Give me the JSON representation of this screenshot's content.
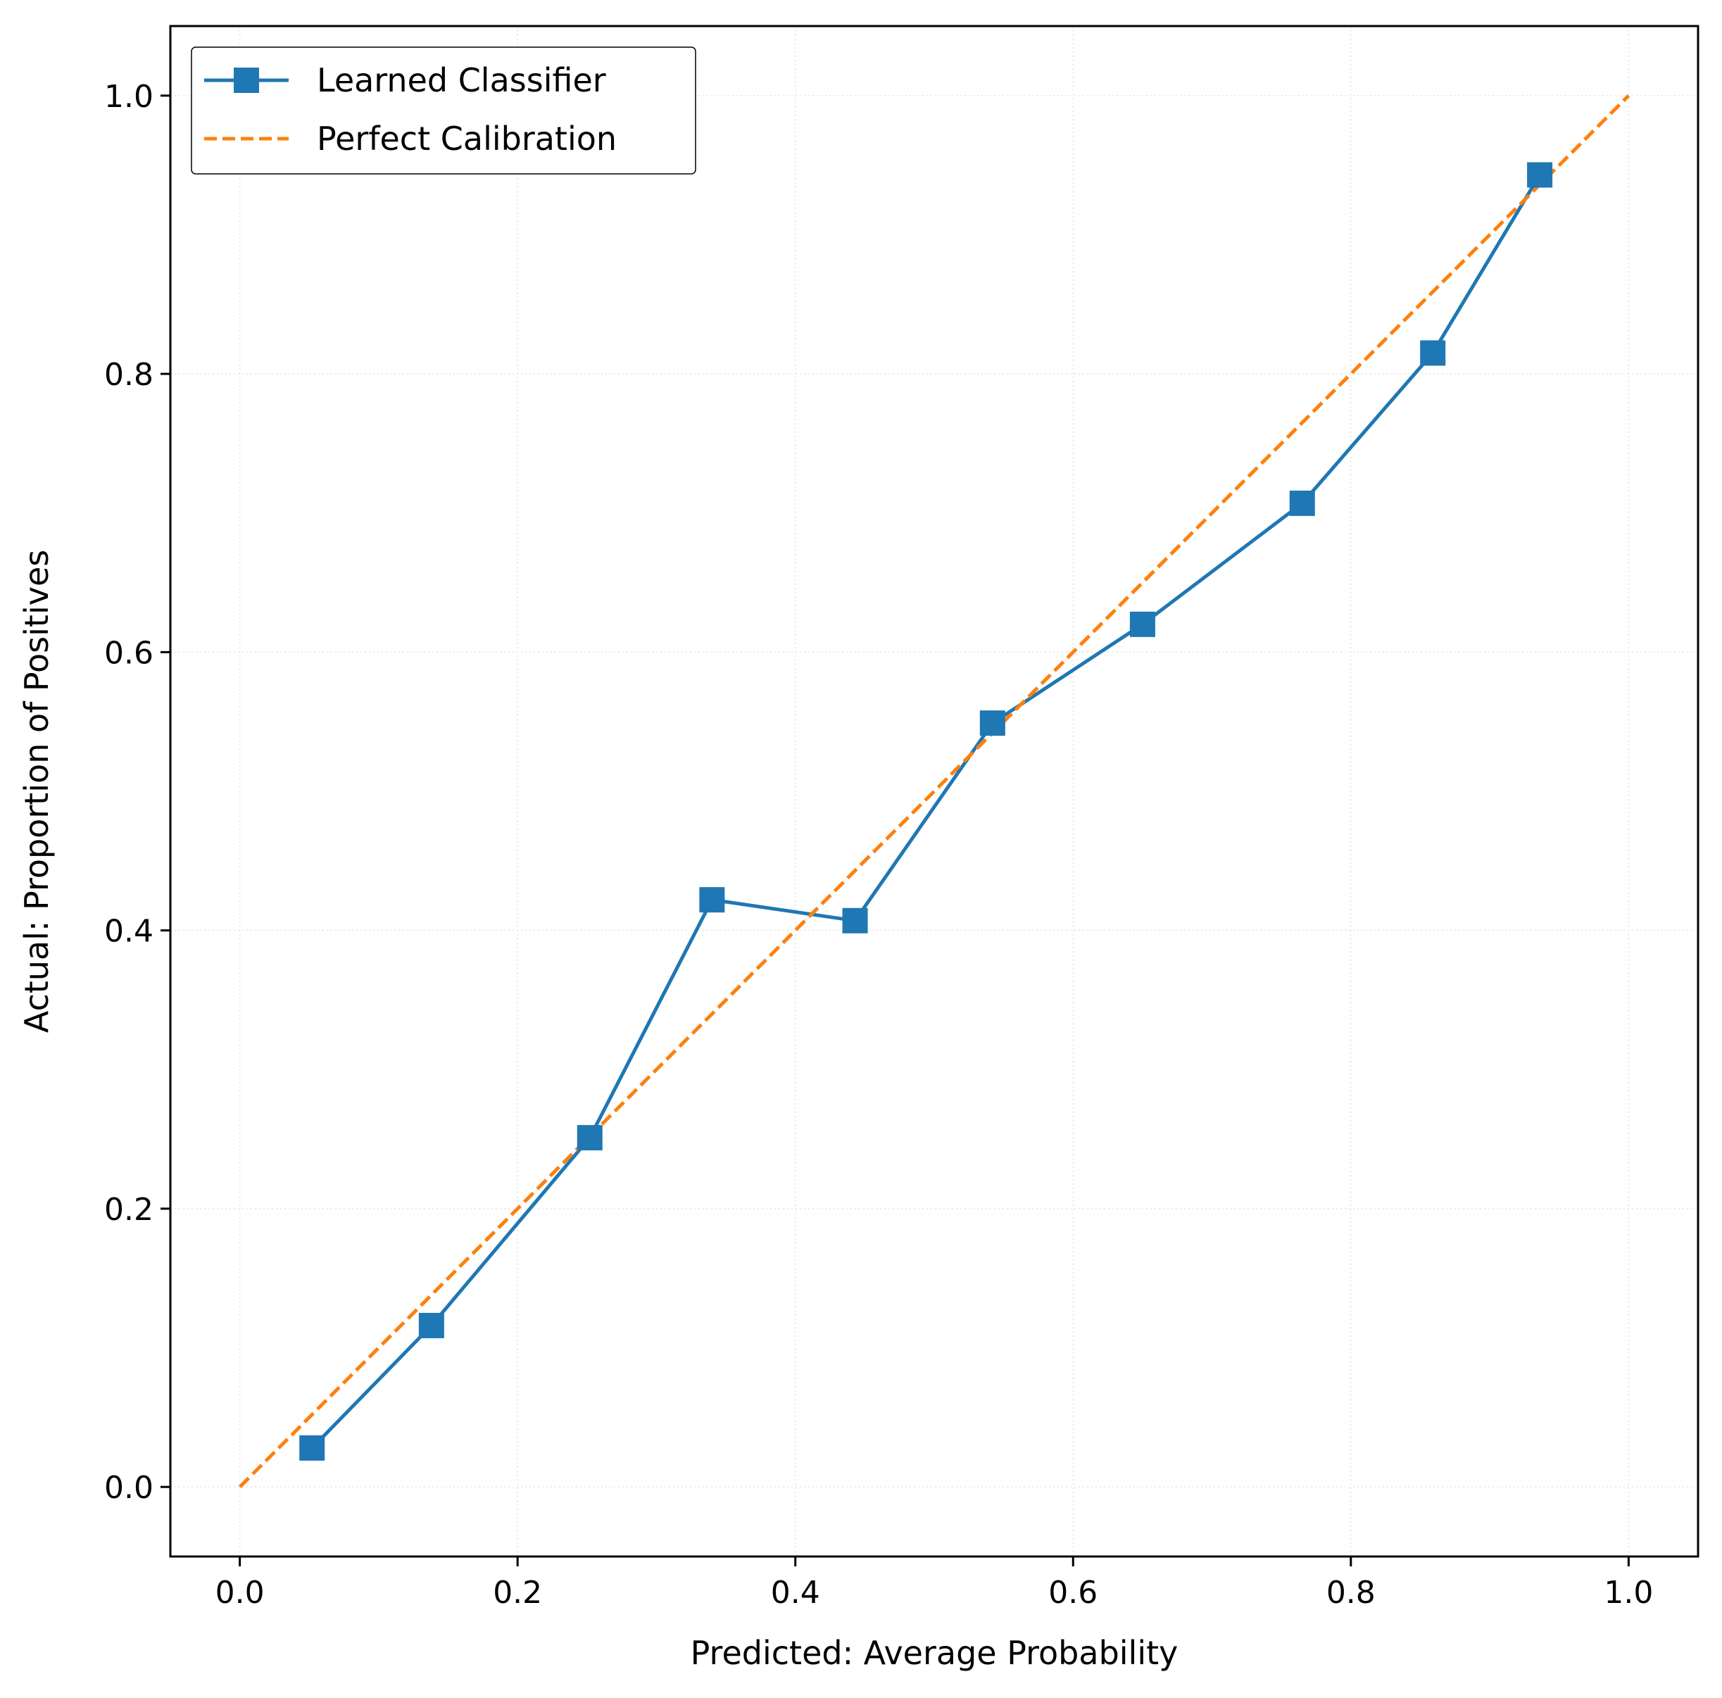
{
  "chart_data": {
    "type": "line",
    "title": "",
    "xlabel": "Predicted: Average Probability",
    "ylabel": "Actual: Proportion of Positives",
    "xlim": [
      -0.05,
      1.05
    ],
    "ylim": [
      -0.05,
      1.05
    ],
    "xticks": [
      "0.0",
      "0.2",
      "0.4",
      "0.6",
      "0.8",
      "1.0"
    ],
    "yticks": [
      "0.0",
      "0.2",
      "0.4",
      "0.6",
      "0.8",
      "1.0"
    ],
    "grid": true,
    "legend_position": "top-left",
    "series": [
      {
        "name": "Learned Classifier",
        "color": "#1f77b4",
        "marker": "square",
        "line_style": "solid",
        "x": [
          0.052,
          0.138,
          0.252,
          0.34,
          0.443,
          0.542,
          0.65,
          0.765,
          0.859,
          0.936
        ],
        "y": [
          0.028,
          0.116,
          0.251,
          0.422,
          0.407,
          0.549,
          0.62,
          0.707,
          0.815,
          0.943
        ]
      },
      {
        "name": "Perfect Calibration",
        "color": "#ff7f0e",
        "marker": "none",
        "line_style": "dashed",
        "x": [
          0,
          1
        ],
        "y": [
          0,
          1
        ]
      }
    ]
  }
}
